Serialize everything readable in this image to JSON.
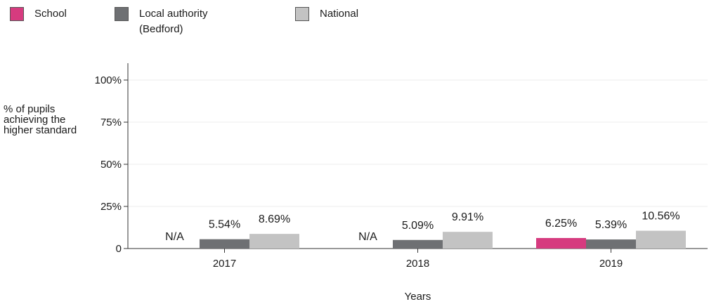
{
  "colors": {
    "school": "#d63b7f",
    "local_authority": "#6e7073",
    "national": "#c3c3c3"
  },
  "legend": [
    {
      "label": "School",
      "color": "#d63b7f"
    },
    {
      "label": "Local authority\n(Bedford)",
      "color": "#6e7073"
    },
    {
      "label": "National",
      "color": "#c3c3c3"
    }
  ],
  "chart_data": {
    "type": "bar",
    "categories": [
      "2017",
      "2018",
      "2019"
    ],
    "series": [
      {
        "name": "School",
        "values": [
          null,
          null,
          6.25
        ],
        "labels": [
          "N/A",
          "N/A",
          "6.25%"
        ]
      },
      {
        "name": "Local authority (Bedford)",
        "values": [
          5.54,
          5.09,
          5.39
        ],
        "labels": [
          "5.54%",
          "5.09%",
          "5.39%"
        ]
      },
      {
        "name": "National",
        "values": [
          8.69,
          9.91,
          10.56
        ],
        "labels": [
          "8.69%",
          "9.91%",
          "10.56%"
        ]
      }
    ],
    "ylabel": "% of pupils achieving the higher standard",
    "xlabel": "Years",
    "ylim": [
      0,
      100
    ],
    "yticks": [
      0,
      25,
      50,
      75,
      100
    ],
    "ytick_labels": [
      "0",
      "25%",
      "50%",
      "75%",
      "100%"
    ],
    "grid": true,
    "legend_position": "top-left"
  }
}
